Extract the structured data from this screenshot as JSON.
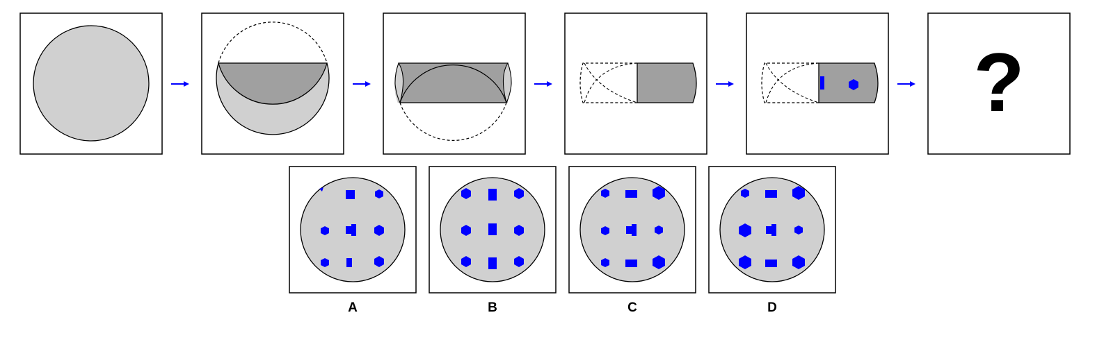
{
  "colors": {
    "circle_fill": "#d0d0d0",
    "fold_fill": "#a0a0a0",
    "shape_fill": "#0000ff",
    "arrow": "#0000ff",
    "stroke": "#000000",
    "background": "#ffffff"
  },
  "sequence": {
    "steps": [
      {
        "name": "step-1-full-circle"
      },
      {
        "name": "step-2-top-folded-down"
      },
      {
        "name": "step-3-bottom-folded-up"
      },
      {
        "name": "step-4-left-folded-right"
      },
      {
        "name": "step-5-holes-punched"
      },
      {
        "name": "step-6-unknown"
      }
    ],
    "question_mark": "?"
  },
  "options": [
    {
      "label": "A"
    },
    {
      "label": "B"
    },
    {
      "label": "C"
    },
    {
      "label": "D"
    }
  ]
}
